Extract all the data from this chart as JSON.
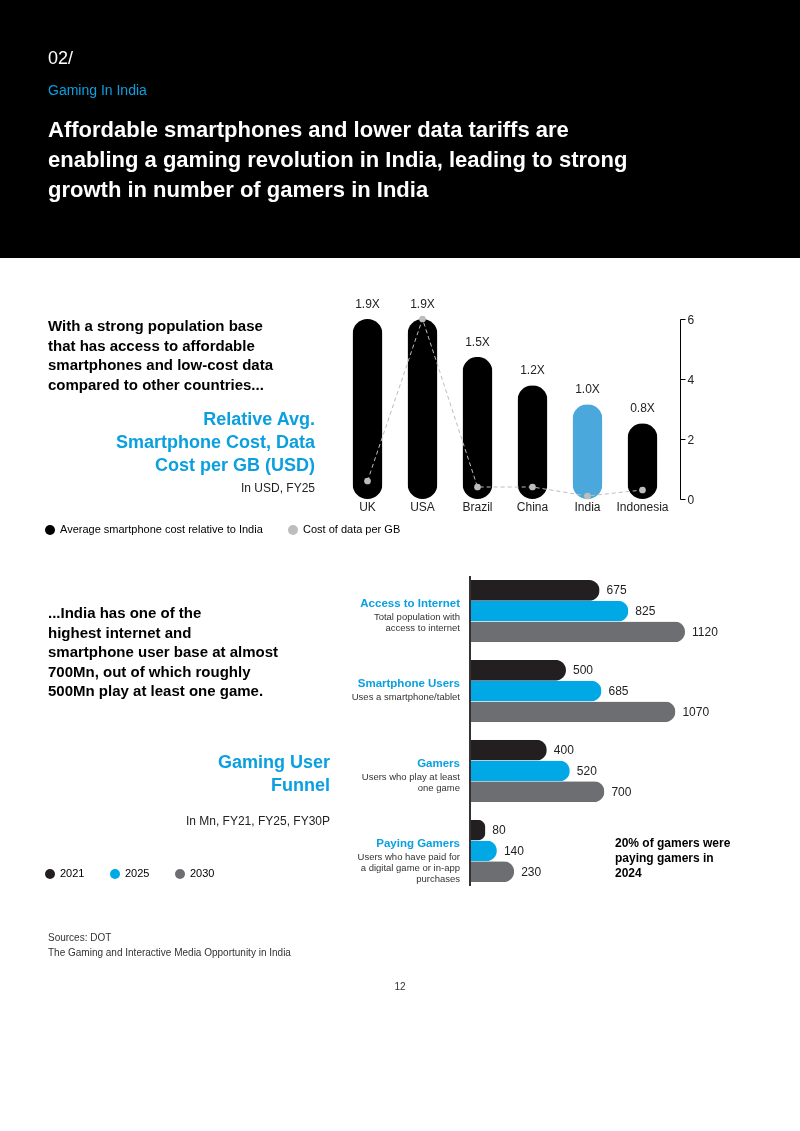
{
  "chart_data": [
    {
      "type": "bar",
      "title": "Relative Avg. Smartphone Cost, Data Cost per GB (USD)",
      "subtitle": "In USD, FY25",
      "categories": [
        "UK",
        "USA",
        "Brazil",
        "China",
        "India",
        "Indonesia"
      ],
      "series": [
        {
          "name": "Average smartphone cost relative to India",
          "color": "#000000",
          "colors": [
            "#000000",
            "#000000",
            "#000000",
            "#000000",
            "#4aa8dc",
            "#000000"
          ],
          "values": [
            1.9,
            1.9,
            1.5,
            1.2,
            1.0,
            0.8
          ],
          "value_labels": [
            "1.9X",
            "1.9X",
            "1.5X",
            "1.2X",
            "1.0X",
            "0.8X"
          ]
        },
        {
          "name": "Cost of data per GB",
          "type": "line",
          "axis": "y2",
          "color": "#bdbdbd",
          "values": [
            0.6,
            6.0,
            0.4,
            0.4,
            0.1,
            0.3
          ]
        }
      ],
      "y2lim": [
        0,
        6
      ],
      "y2ticks": [
        0,
        2,
        4,
        6
      ],
      "marker": "circle",
      "line_style": "dashed",
      "legend": "bottom left",
      "grid": false,
      "annotations": [
        "02/",
        "Gaming In India",
        "Affordable smartphones and lower data tariffs are enabling a gaming revolution in India, leading to strong growth in number of gamers in India",
        "With a strong population base that has access to affordable smartphones and low-cost data compared to other countries..."
      ]
    },
    {
      "type": "bar",
      "orientation": "horizontal",
      "title": "Gaming User Funnel",
      "subtitle": "In Mn, FY21, FY25, FY30P",
      "categories": [
        "Access to Internet",
        "Smartphone Users",
        "Gamers",
        "Paying Gamers"
      ],
      "series": [
        {
          "name": "2021",
          "color": "#231f20",
          "values": [
            675,
            500,
            400,
            80
          ]
        },
        {
          "name": "2025",
          "color": "#00a9e6",
          "values": [
            825,
            685,
            520,
            140
          ]
        },
        {
          "name": "2030",
          "color": "#6d6e71",
          "values": [
            1120,
            1070,
            700,
            230
          ]
        }
      ],
      "data_labels": true,
      "legend": "bottom left",
      "grid": false,
      "annotations": [
        "Total population with access to internet",
        "Uses a smartphone/tablet",
        "Users who play at least one game",
        "Users who have paid for a digital game or in-app purchases",
        "20% of gamers were paying gamers in 2024",
        "...India has one of the highest internet and smartphone user base at almost 700Mn, out of which roughly 500Mn play at least one game.",
        "Sources: DOT",
        "The Gaming and Interactive Media Opportunity in India",
        "12"
      ]
    }
  ]
}
